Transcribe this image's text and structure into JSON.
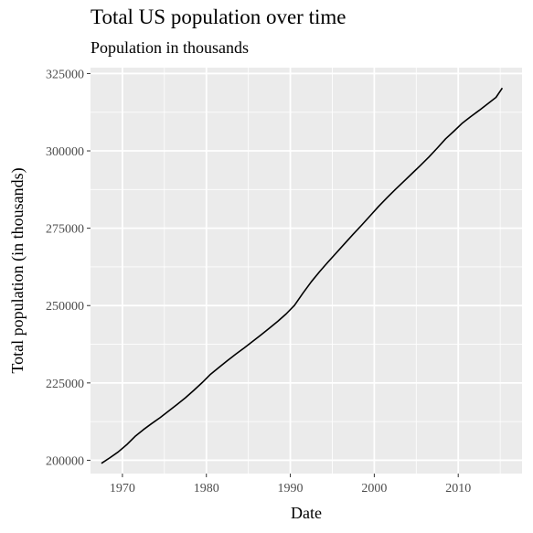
{
  "chart_data": {
    "type": "line",
    "title": "Total US population over time",
    "subtitle": "Population in thousands",
    "xlabel": "Date",
    "ylabel": "Total population (in thousands)",
    "x_ticks": [
      1970,
      1980,
      1990,
      2000,
      2010
    ],
    "y_ticks": [
      200000,
      225000,
      250000,
      275000,
      300000,
      325000
    ],
    "y_tick_labels": [
      "200000",
      "225000",
      "250000",
      "275000",
      "300000",
      "325000"
    ],
    "xlim": [
      1966.2,
      2017.6
    ],
    "ylim": [
      195700,
      326900
    ],
    "grid": true,
    "legend": "none",
    "colors": {
      "panel": "#ebebeb",
      "grid": "#ffffff",
      "line": "#000000",
      "text": "#4d4d4d"
    },
    "series": [
      {
        "x": [
          1967.5,
          1968.5,
          1969.5,
          1970.5,
          1971.5,
          1972.5,
          1973.5,
          1974.5,
          1975.5,
          1976.5,
          1977.5,
          1978.5,
          1979.5,
          1980.5,
          1981.5,
          1982.5,
          1983.5,
          1984.5,
          1985.5,
          1986.5,
          1987.5,
          1988.5,
          1989.5,
          1990.5,
          1991.5,
          1992.5,
          1993.5,
          1994.5,
          1995.5,
          1996.5,
          1997.5,
          1998.5,
          1999.5,
          2000.5,
          2001.5,
          2002.5,
          2003.5,
          2004.5,
          2005.5,
          2006.5,
          2007.5,
          2008.5,
          2009.5,
          2010.5,
          2011.5,
          2012.5,
          2013.5,
          2014.5,
          2015.25
        ],
        "y": [
          199000,
          200800,
          202700,
          205000,
          207700,
          209900,
          211900,
          213800,
          215900,
          218000,
          220200,
          222600,
          225100,
          227800,
          230000,
          232200,
          234300,
          236300,
          238400,
          240500,
          242700,
          244900,
          247300,
          250100,
          254000,
          257700,
          261000,
          264100,
          267100,
          270100,
          273100,
          276000,
          279000,
          282000,
          284800,
          287500,
          290100,
          292700,
          295300,
          298000,
          300900,
          303900,
          306400,
          309000,
          311100,
          313100,
          315200,
          317300,
          320300
        ]
      }
    ]
  }
}
